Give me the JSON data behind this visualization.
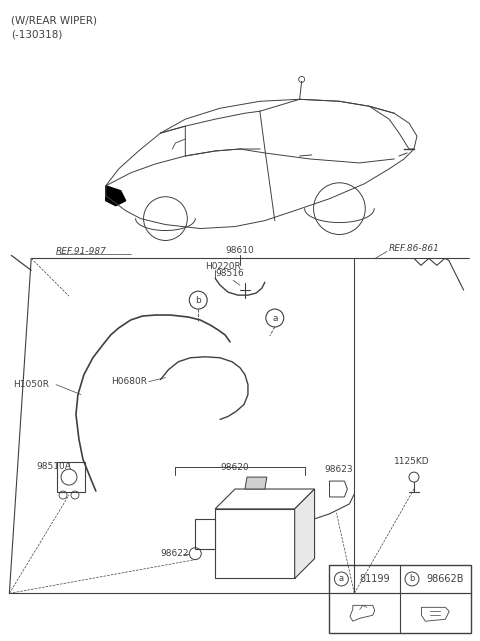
{
  "title_line1": "(W/REAR WIPER)",
  "title_line2": "(-130318)",
  "bg_color": "#ffffff",
  "line_color": "#404040",
  "text_color": "#404040",
  "fig_width": 4.8,
  "fig_height": 6.41,
  "dpi": 100,
  "legend_a_code": "81199",
  "legend_b_code": "98662B"
}
